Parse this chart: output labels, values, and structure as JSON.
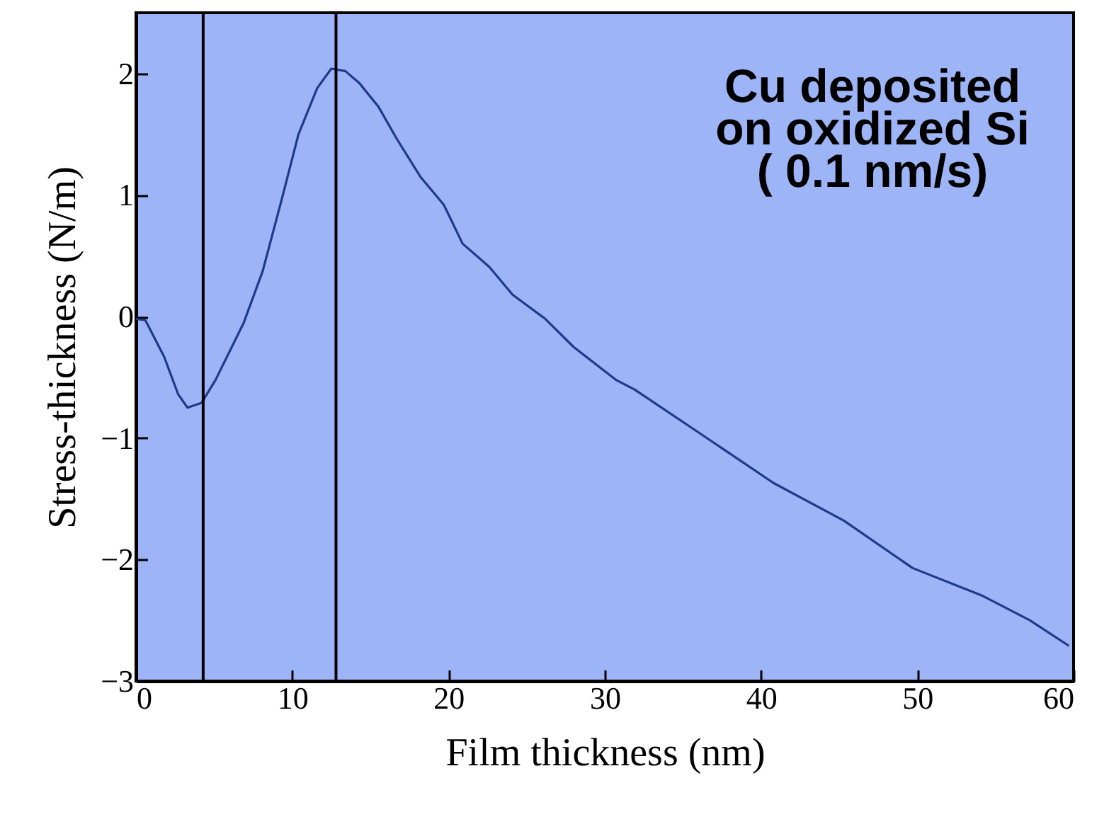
{
  "chart_data": {
    "type": "line",
    "xlabel": "Film thickness (nm)",
    "ylabel": "Stress-thickness (N/m)",
    "annotations": [
      "Cu deposited",
      "on oxidized Si",
      "( 0.1 nm/s)"
    ],
    "x": [
      0,
      0.6,
      1.8,
      2.7,
      3.3,
      4.2,
      5.1,
      6.9,
      8.1,
      9.3,
      10.4,
      11.6,
      12.5,
      13.4,
      14.3,
      15.5,
      16.7,
      18.2,
      19.7,
      20.9,
      22.6,
      24.1,
      26.2,
      28.0,
      30.7,
      31.9,
      36.3,
      40.8,
      45.3,
      49.7,
      54.2,
      57.2,
      59.7
    ],
    "series": [
      {
        "color": "#1f3a8a",
        "values": [
          -0.02,
          -0.03,
          -0.33,
          -0.64,
          -0.75,
          -0.71,
          -0.52,
          -0.05,
          0.37,
          0.95,
          1.5,
          1.88,
          2.04,
          2.02,
          1.92,
          1.73,
          1.46,
          1.15,
          0.92,
          0.6,
          0.41,
          0.18,
          -0.02,
          -0.25,
          -0.52,
          -0.6,
          -0.98,
          -1.37,
          -1.68,
          -2.07,
          -2.3,
          -2.5,
          -2.71
        ]
      }
    ],
    "xlim": [
      0,
      60
    ],
    "xticks": [
      0,
      10,
      20,
      30,
      40,
      50,
      60
    ],
    "ylim": [
      -3,
      2.5
    ],
    "yticks": [
      -3,
      -2,
      -1,
      0,
      1,
      2
    ],
    "ref_lines": [
      {
        "axis": "x",
        "value": 4.3,
        "color": "#000000"
      },
      {
        "axis": "x",
        "value": 12.8,
        "color": "#000000"
      }
    ],
    "grid": false,
    "marker": "none",
    "line_style": "solid"
  }
}
